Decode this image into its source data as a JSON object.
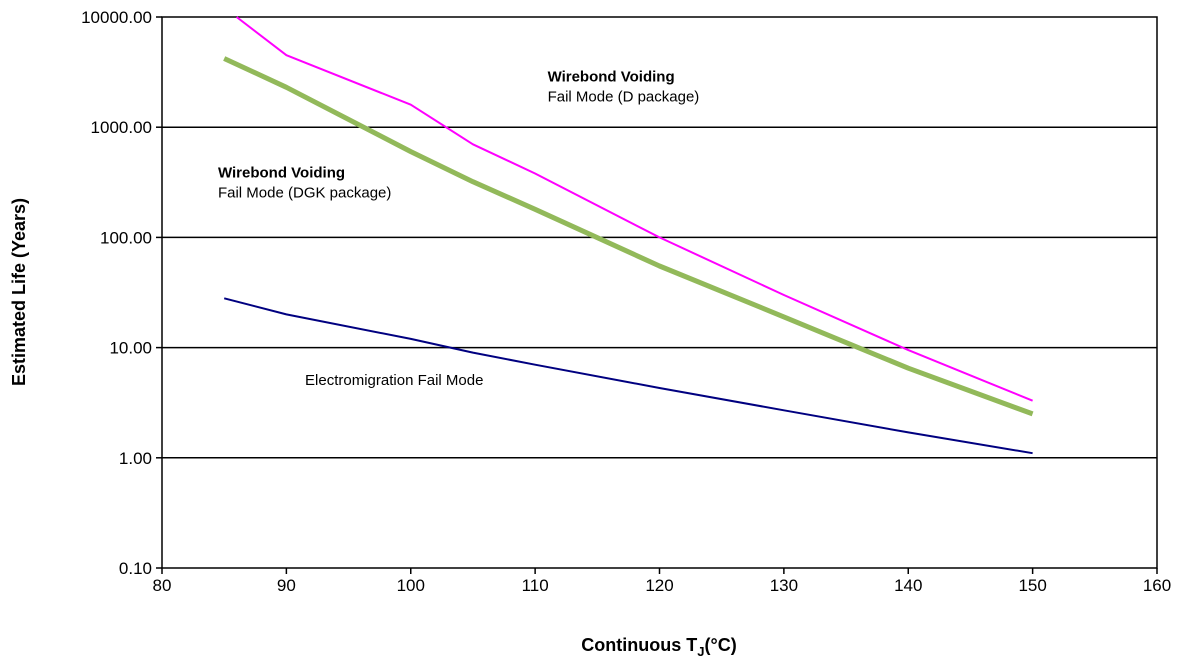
{
  "chart_data": {
    "type": "line",
    "x_axis": {
      "title_main": "Continuous T",
      "title_sub": "J",
      "title_unit": "(°C)",
      "range": [
        80,
        160
      ],
      "ticks": [
        80,
        90,
        100,
        110,
        120,
        130,
        140,
        150,
        160
      ]
    },
    "y_axis": {
      "title": "Estimated Life (Years)",
      "scale": "log",
      "range": [
        0.1,
        10000
      ],
      "ticks": [
        0.1,
        1,
        10,
        100,
        1000,
        10000
      ],
      "tick_labels": [
        "0.10",
        "1.00",
        "10.00",
        "100.00",
        "1000.00",
        "10000.00"
      ]
    },
    "grid": "horizontal major gridlines",
    "series": [
      {
        "color": "#ff00ff",
        "width": 2,
        "x": [
          86,
          90,
          100,
          105,
          110,
          120,
          130,
          140,
          150
        ],
        "y": [
          10000,
          4500,
          1600,
          700,
          380,
          100,
          30,
          9.5,
          3.3
        ]
      },
      {
        "color": "#92b95a",
        "width": 5,
        "x": [
          85,
          90,
          100,
          105,
          110,
          120,
          130,
          140,
          150
        ],
        "y": [
          4200,
          2300,
          600,
          320,
          180,
          55,
          19,
          6.5,
          2.5
        ]
      },
      {
        "color": "#000080",
        "width": 2,
        "x": [
          85,
          90,
          100,
          105,
          110,
          120,
          130,
          140,
          150
        ],
        "y": [
          28,
          20,
          12,
          9,
          7,
          4.3,
          2.7,
          1.7,
          1.1
        ]
      }
    ],
    "annotations": [
      {
        "id": "d-pkg",
        "line1": "Wirebond Voiding",
        "line2": "Fail Mode (D package)",
        "x": 111,
        "y": 2600
      },
      {
        "id": "dgk-pkg",
        "line1": "Wirebond Voiding",
        "line2": "Fail Mode (DGK package)",
        "x": 84.5,
        "y": 350
      },
      {
        "id": "em",
        "line1": "",
        "line2": "Electromigration Fail Mode",
        "x": 91.5,
        "y": 4.6
      }
    ]
  }
}
